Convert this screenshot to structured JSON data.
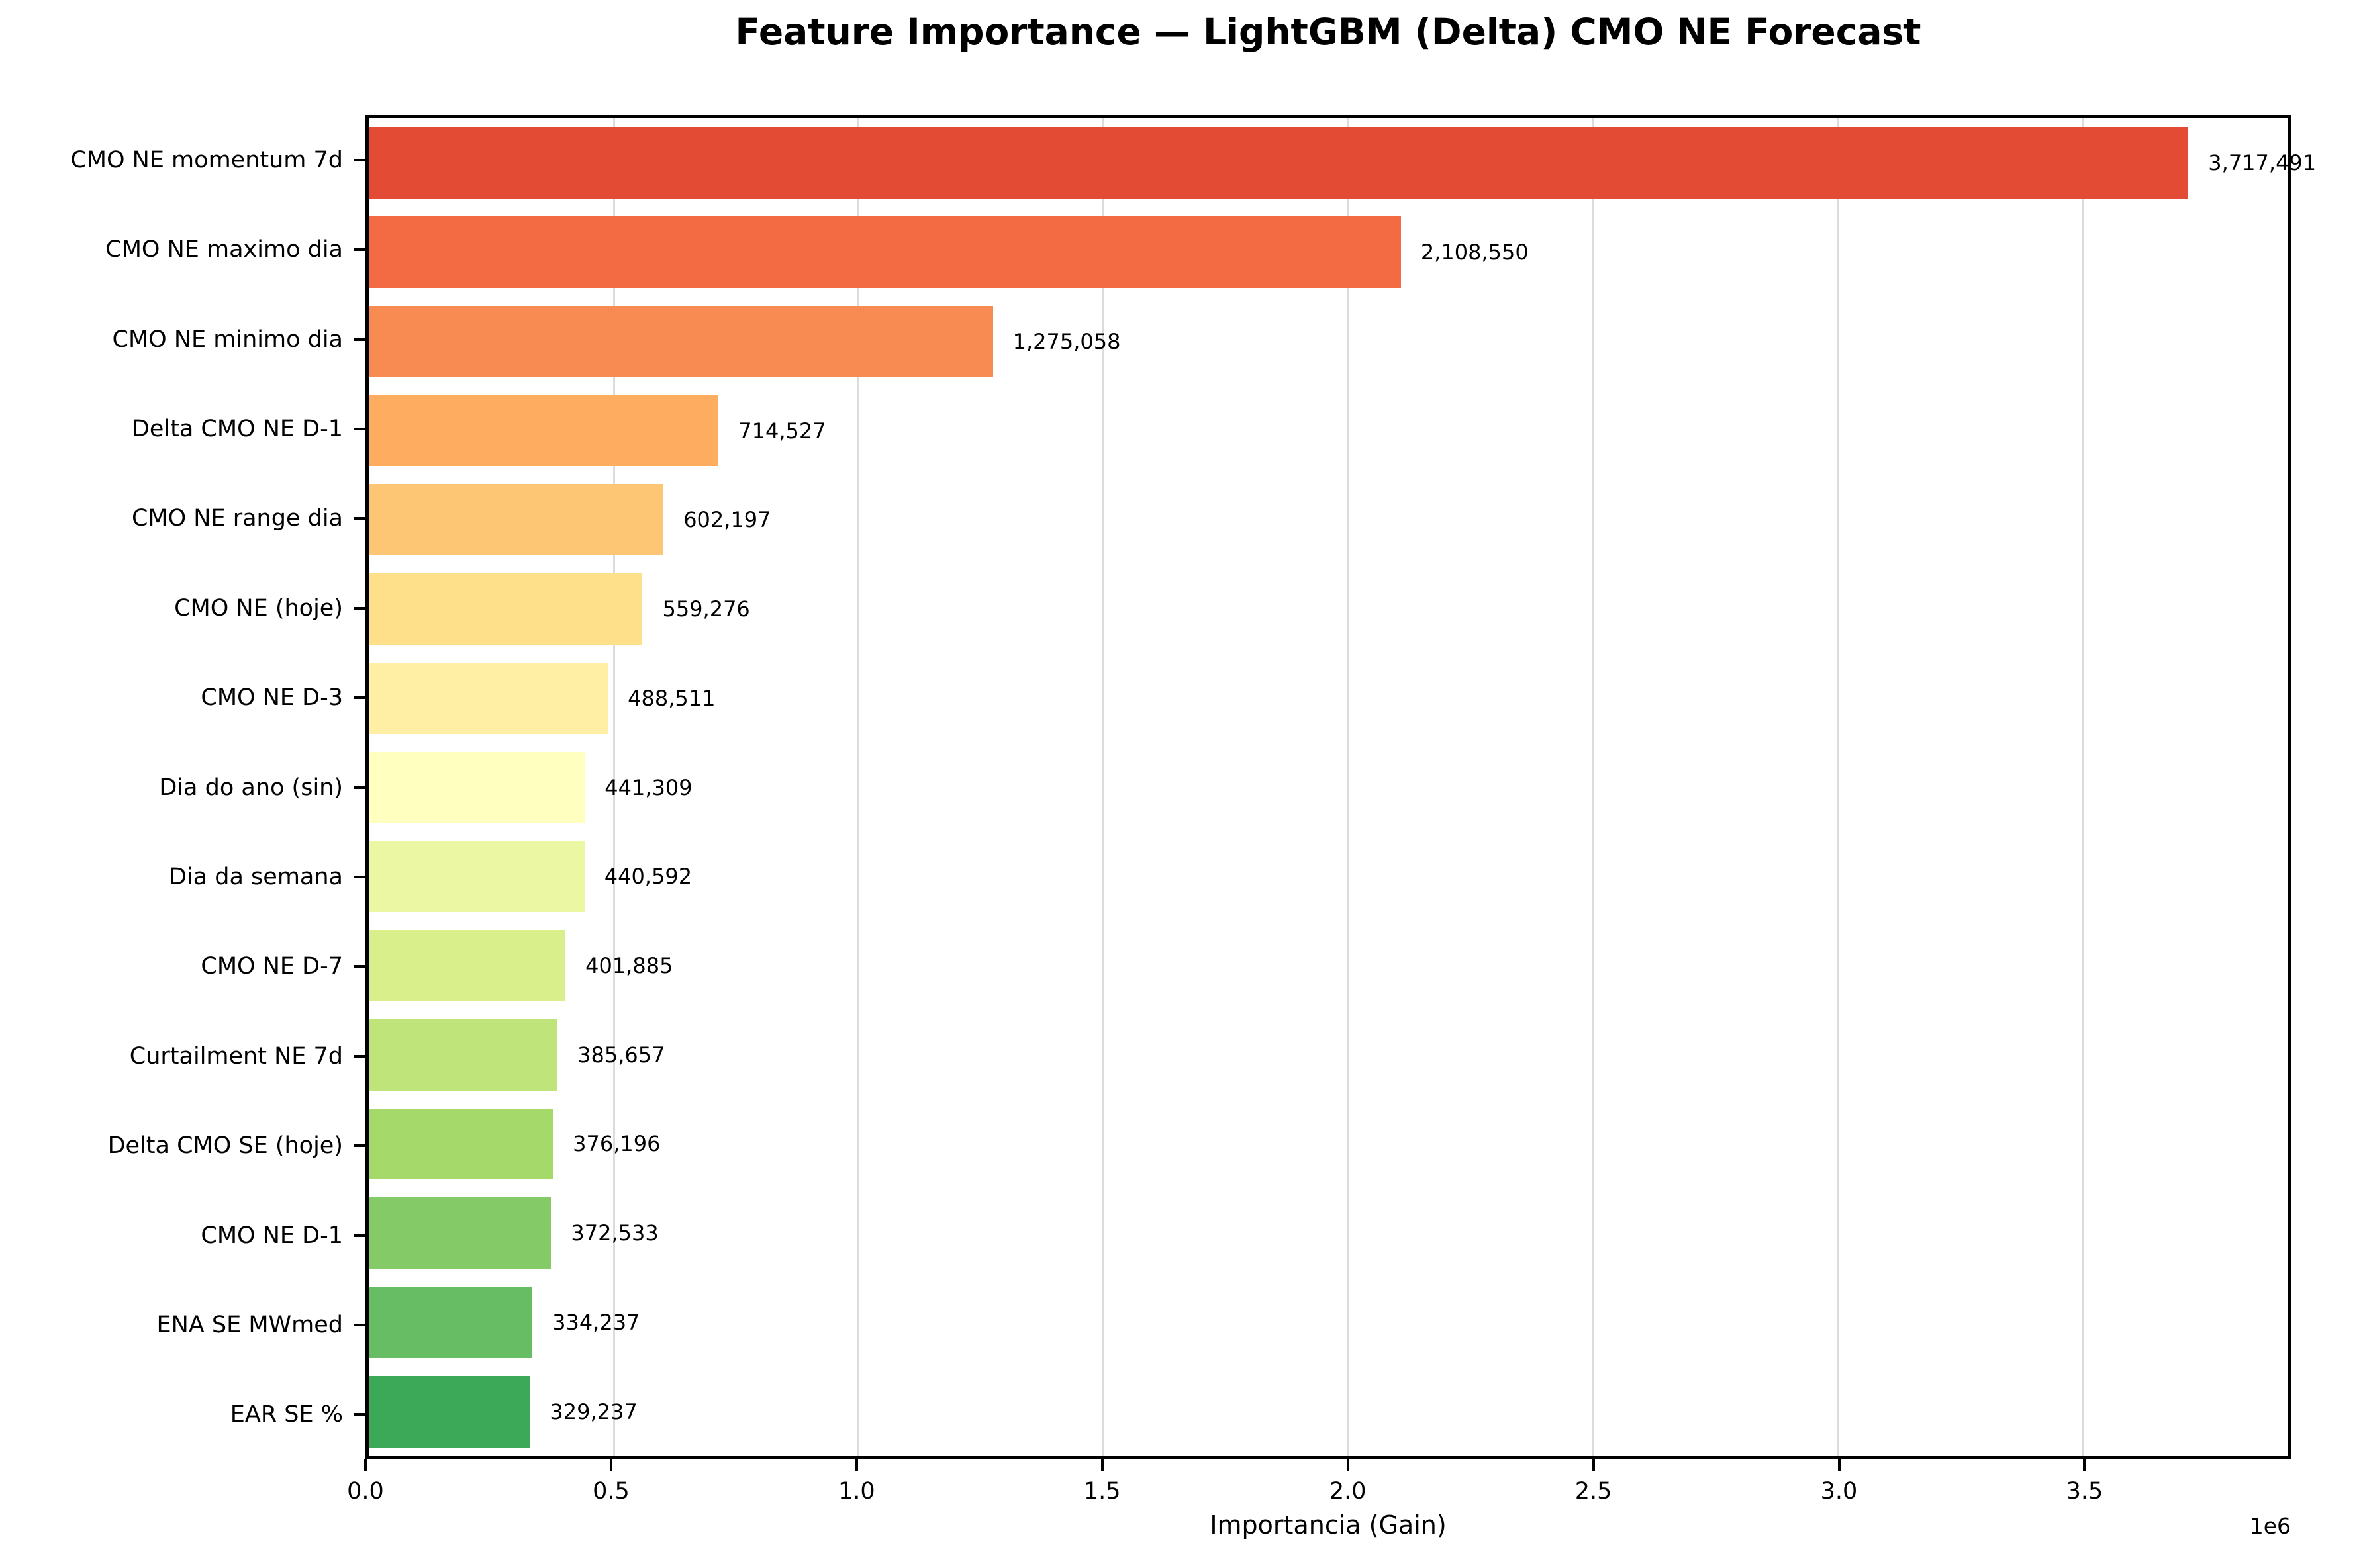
{
  "chart_data": {
    "type": "bar",
    "orientation": "horizontal",
    "title": "Feature Importance — LightGBM (Delta) CMO NE Forecast",
    "xlabel": "Importancia (Gain)",
    "x_offset_label": "1e6",
    "xlim": [
      0,
      3920000
    ],
    "grid": true,
    "legend": null,
    "categories": [
      "CMO NE momentum 7d",
      "CMO NE maximo dia",
      "CMO NE minimo dia",
      "Delta CMO NE D-1",
      "CMO NE range dia",
      "CMO NE (hoje)",
      "CMO NE D-3",
      "Dia do ano (sin)",
      "Dia da semana",
      "CMO NE D-7",
      "Curtailment NE 7d",
      "Delta CMO SE (hoje)",
      "CMO NE D-1",
      "ENA SE MWmed",
      "EAR SE %"
    ],
    "values": [
      3717491,
      2108550,
      1275058,
      714527,
      602197,
      559276,
      488511,
      441309,
      440592,
      401885,
      385657,
      376196,
      372533,
      334237,
      329237
    ],
    "value_labels": [
      "3,717,491",
      "2,108,550",
      "1,275,058",
      "714,527",
      "602,197",
      "559,276",
      "488,511",
      "441,309",
      "440,592",
      "401,885",
      "385,657",
      "376,196",
      "372,533",
      "334,237",
      "329,237"
    ],
    "bar_colors": [
      "#e44b34",
      "#f36b42",
      "#f88b51",
      "#fdac60",
      "#fdc675",
      "#fee08b",
      "#feefa4",
      "#ffffbf",
      "#ecf7a4",
      "#d9ef8b",
      "#bee47a",
      "#a5d96a",
      "#84ca66",
      "#66bd63",
      "#3ca959"
    ],
    "xticks": [
      {
        "value": 0,
        "label": "0.0"
      },
      {
        "value": 500000,
        "label": "0.5"
      },
      {
        "value": 1000000,
        "label": "1.0"
      },
      {
        "value": 1500000,
        "label": "1.5"
      },
      {
        "value": 2000000,
        "label": "2.0"
      },
      {
        "value": 2500000,
        "label": "2.5"
      },
      {
        "value": 3000000,
        "label": "3.0"
      },
      {
        "value": 3500000,
        "label": "3.5"
      }
    ]
  },
  "colors": {
    "background": "#ffffff",
    "spine": "#000000",
    "grid": "#dcdcdc",
    "text": "#000000"
  }
}
